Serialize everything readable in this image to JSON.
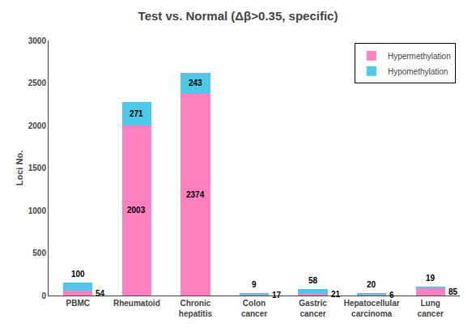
{
  "chart_data": {
    "type": "bar",
    "title": "Test vs. Normal (Δβ>0.35, specific)",
    "y_label": "Loci No.",
    "categories": [
      "PBMC",
      "Rheumatoid",
      "Chronic\nhepatitis",
      "Colon\ncancer",
      "Gastric\ncancer",
      "Hepatocellular\ncarcinoma",
      "Lung\ncancer"
    ],
    "series": [
      {
        "name": "Hypermethylation",
        "color": "#FF80C0",
        "values": [
          54,
          2003,
          2374,
          17,
          21,
          6,
          85
        ]
      },
      {
        "name": "Hypomethylation",
        "color": "#4CC8E8",
        "values": [
          100,
          271,
          243,
          9,
          58,
          20,
          19
        ]
      }
    ],
    "stacked": true,
    "data_labels": true,
    "ylim": [
      0,
      3000
    ],
    "yticks": [
      0,
      500,
      1000,
      1500,
      2000,
      2500,
      3000
    ],
    "grid": false,
    "legend": "upper right"
  }
}
